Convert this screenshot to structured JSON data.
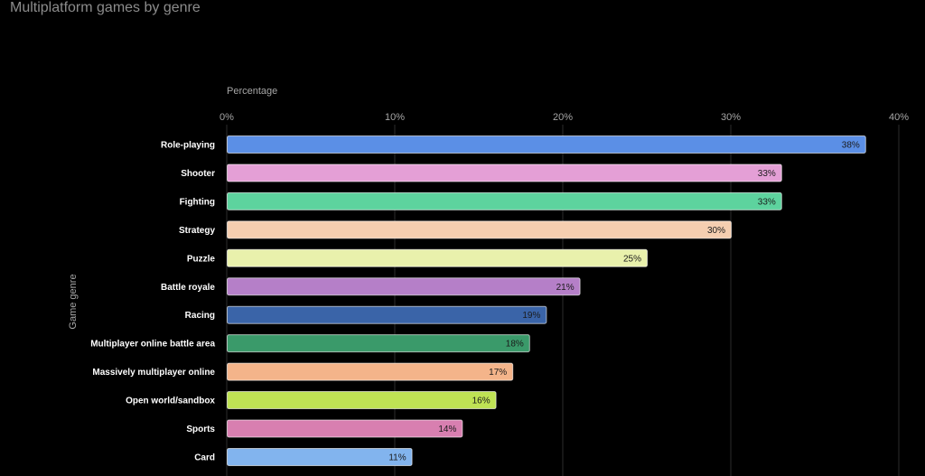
{
  "chart_data": {
    "type": "bar",
    "orientation": "horizontal",
    "title": "Multiplatform games by genre",
    "xlabel": "Percentage",
    "ylabel": "Game genre",
    "xlim": [
      0,
      40
    ],
    "xticks": [
      0,
      10,
      20,
      30,
      40
    ],
    "tick_suffix": "%",
    "grid": true,
    "categories": [
      "Role-playing",
      "Shooter",
      "Fighting",
      "Strategy",
      "Puzzle",
      "Battle royale",
      "Racing",
      "Multiplayer online battle area",
      "Massively multiplayer online",
      "Open world/sandbox",
      "Sports",
      "Card"
    ],
    "values": [
      38,
      33,
      33,
      30,
      25,
      21,
      19,
      18,
      17,
      16,
      14,
      11
    ],
    "data_labels": [
      "38%",
      "33%",
      "33%",
      "30%",
      "25%",
      "21%",
      "19%",
      "18%",
      "17%",
      "16%",
      "14%",
      "11%"
    ],
    "colors": [
      "#5b8fe6",
      "#e49fd6",
      "#5dd39e",
      "#f5ceb0",
      "#e9f1ac",
      "#b57fc8",
      "#3a64a8",
      "#3a9a6a",
      "#f4b48a",
      "#bfe354",
      "#d87fb0",
      "#82b4ee"
    ]
  }
}
